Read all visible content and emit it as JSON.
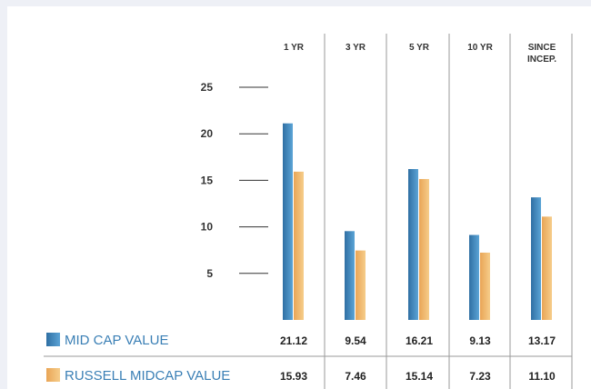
{
  "chart_data": {
    "type": "bar",
    "categories": [
      "1 YR",
      "3 YR",
      "5 YR",
      "10 YR",
      "SINCE INCEP."
    ],
    "category_lines": [
      [
        "1 YR"
      ],
      [
        "3 YR"
      ],
      [
        "5 YR"
      ],
      [
        "10 YR"
      ],
      [
        "SINCE",
        "INCEP."
      ]
    ],
    "yticks": [
      5,
      10,
      15,
      20,
      25
    ],
    "ylim": [
      0,
      25
    ],
    "grid": false,
    "legend_position": "bottom-left",
    "series": [
      {
        "name": "MID CAP VALUE",
        "values": [
          21.12,
          9.54,
          16.21,
          9.13,
          13.17
        ],
        "labels": [
          "21.12",
          "9.54",
          "16.21",
          "9.13",
          "13.17"
        ],
        "color": "#2f6fa3",
        "color_light": "#5ba4d6"
      },
      {
        "name": "RUSSELL MIDCAP VALUE",
        "values": [
          15.93,
          7.46,
          15.14,
          7.23,
          11.1
        ],
        "labels": [
          "15.93",
          "7.46",
          "15.14",
          "7.23",
          "11.10"
        ],
        "color": "#e9a556",
        "color_light": "#f6cd8a"
      }
    ]
  }
}
